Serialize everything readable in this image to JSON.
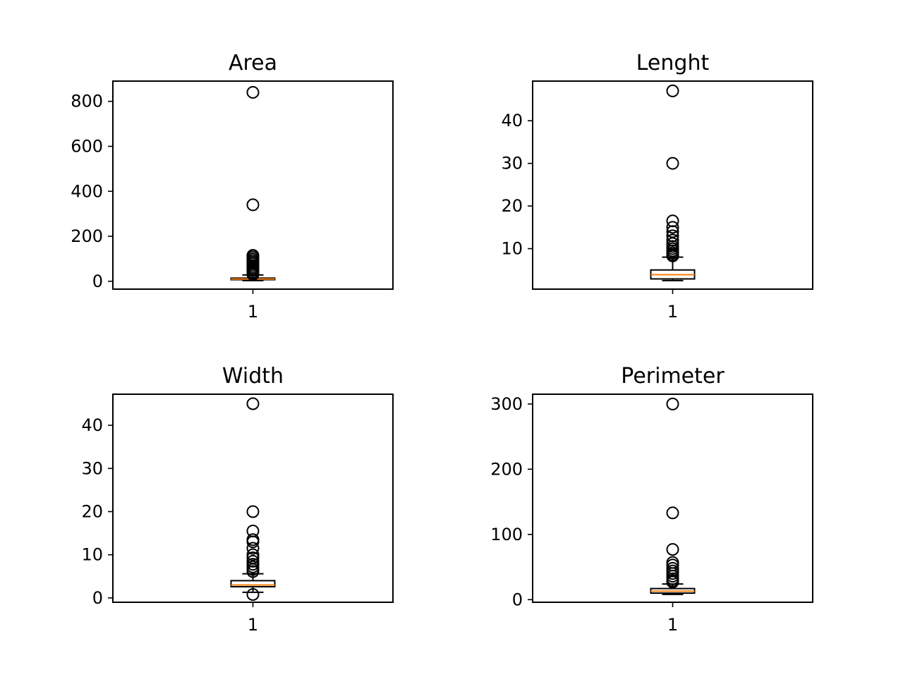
{
  "chart_data": [
    {
      "type": "box",
      "title": "Area",
      "xlabel": "",
      "ylabel": "",
      "ylim": [
        -35,
        890
      ],
      "yticks": [
        0,
        200,
        400,
        600,
        800
      ],
      "categories": [
        "1"
      ],
      "box": {
        "q1": 7,
        "median": 10,
        "q3": 14,
        "whisker_low": 3,
        "whisker_high": 28
      },
      "outliers": [
        840,
        340,
        115,
        108,
        100,
        92,
        85,
        78,
        70,
        62,
        55,
        48,
        40,
        34,
        30
      ],
      "colors": {
        "median": "#ff7f0e",
        "box": "#000000"
      },
      "grid": false
    },
    {
      "type": "box",
      "title": "Lenght",
      "xlabel": "",
      "ylabel": "",
      "ylim": [
        0.5,
        49.3
      ],
      "yticks": [
        10,
        20,
        30,
        40
      ],
      "categories": [
        "1"
      ],
      "box": {
        "q1": 2.9,
        "median": 3.9,
        "q3": 5.0,
        "whisker_low": 2.5,
        "whisker_high": 8.0
      },
      "outliers": [
        47,
        30,
        16.5,
        15,
        14,
        13,
        12,
        11.2,
        10.5,
        10,
        9.5,
        9,
        8.6,
        8.3
      ],
      "colors": {
        "median": "#ff7f0e",
        "box": "#000000"
      },
      "grid": false
    },
    {
      "type": "box",
      "title": "Width",
      "xlabel": "",
      "ylabel": "",
      "ylim": [
        -1.0,
        47.2
      ],
      "yticks": [
        0,
        10,
        20,
        30,
        40
      ],
      "categories": [
        "1"
      ],
      "box": {
        "q1": 2.6,
        "median": 3.0,
        "q3": 4.0,
        "whisker_low": 1.3,
        "whisker_high": 5.6
      },
      "outliers": [
        45,
        20,
        15.5,
        13.5,
        13,
        11.5,
        10,
        9.3,
        8.5,
        7.8,
        7.2,
        6.6,
        6.1,
        0.8
      ],
      "colors": {
        "median": "#ff7f0e",
        "box": "#000000"
      },
      "grid": false
    },
    {
      "type": "box",
      "title": "Perimeter",
      "xlabel": "",
      "ylabel": "",
      "ylim": [
        -4,
        315
      ],
      "yticks": [
        0,
        100,
        200,
        300
      ],
      "categories": [
        "1"
      ],
      "box": {
        "q1": 10,
        "median": 13,
        "q3": 17,
        "whisker_low": 8,
        "whisker_high": 24
      },
      "outliers": [
        300,
        133,
        77,
        57,
        53,
        48,
        44,
        40,
        36,
        32,
        29,
        27
      ],
      "colors": {
        "median": "#ff7f0e",
        "box": "#000000"
      },
      "grid": false
    }
  ]
}
